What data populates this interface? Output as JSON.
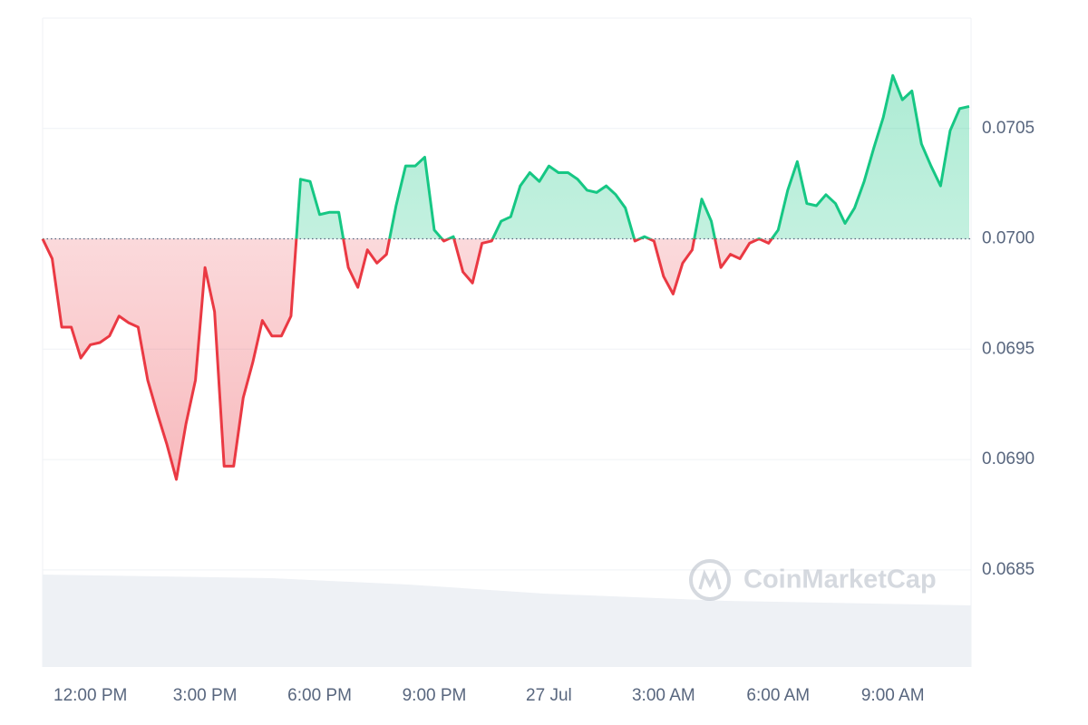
{
  "chart_data": {
    "type": "line",
    "categories": [
      null,
      null,
      null,
      null,
      null,
      "12:00 PM",
      null,
      null,
      null,
      null,
      null,
      null,
      null,
      null,
      null,
      null,
      null,
      "3:00 PM",
      null,
      null,
      null,
      null,
      null,
      null,
      null,
      null,
      null,
      null,
      null,
      "6:00 PM",
      null,
      null,
      null,
      null,
      null,
      null,
      null,
      null,
      null,
      null,
      null,
      "9:00 PM",
      null,
      null,
      null,
      null,
      null,
      null,
      null,
      null,
      null,
      null,
      null,
      "27 Jul",
      null,
      null,
      null,
      null,
      null,
      null,
      null,
      null,
      null,
      null,
      null,
      "3:00 AM",
      null,
      null,
      null,
      null,
      null,
      null,
      null,
      null,
      null,
      null,
      null,
      "6:00 AM",
      null,
      null,
      null,
      null,
      null,
      null,
      null,
      null,
      null,
      null,
      null,
      "9:00 AM",
      null,
      null,
      null,
      null,
      null,
      null,
      null,
      null
    ],
    "series": [
      {
        "color": "#16c784",
        "down_color": "#ea3943",
        "values": [
          0.07,
          0.06991,
          0.0696,
          0.0696,
          0.06946,
          0.06952,
          0.06953,
          0.06956,
          0.06965,
          0.06962,
          0.0696,
          0.06936,
          0.06921,
          0.06907,
          0.06891,
          0.06916,
          0.06936,
          0.06987,
          0.06967,
          0.06897,
          0.06897,
          0.06928,
          0.06944,
          0.06963,
          0.06956,
          0.06956,
          0.06965,
          0.07027,
          0.07026,
          0.07011,
          0.07012,
          0.07012,
          0.06987,
          0.06978,
          0.06995,
          0.06989,
          0.06993,
          0.07015,
          0.07033,
          0.07033,
          0.07037,
          0.07004,
          0.06999,
          0.07001,
          0.06985,
          0.0698,
          0.06998,
          0.06999,
          0.07008,
          0.0701,
          0.07024,
          0.0703,
          0.07026,
          0.07033,
          0.0703,
          0.0703,
          0.07027,
          0.07022,
          0.07021,
          0.07024,
          0.0702,
          0.07014,
          0.06999,
          0.07001,
          0.06999,
          0.06983,
          0.06975,
          0.06989,
          0.06995,
          0.07018,
          0.07008,
          0.06987,
          0.06993,
          0.06991,
          0.06998,
          0.07,
          0.06998,
          0.07004,
          0.07022,
          0.07035,
          0.07016,
          0.07015,
          0.0702,
          0.07016,
          0.07007,
          0.07014,
          0.07026,
          0.07041,
          0.07055,
          0.07074,
          0.07063,
          0.07067,
          0.07043,
          0.07033,
          0.07024,
          0.07049,
          0.07059,
          0.0706
        ]
      }
    ],
    "baseline": 0.07,
    "ylim": [
      0.06806,
      0.071
    ],
    "yticks": [
      0.0685,
      {
        "value": 0.069,
        "label": "0.0690"
      },
      0.0695,
      {
        "value": 0.07,
        "label": "0.0700"
      },
      0.0705
    ],
    "grid": true,
    "watermark": "CoinMarketCap"
  }
}
